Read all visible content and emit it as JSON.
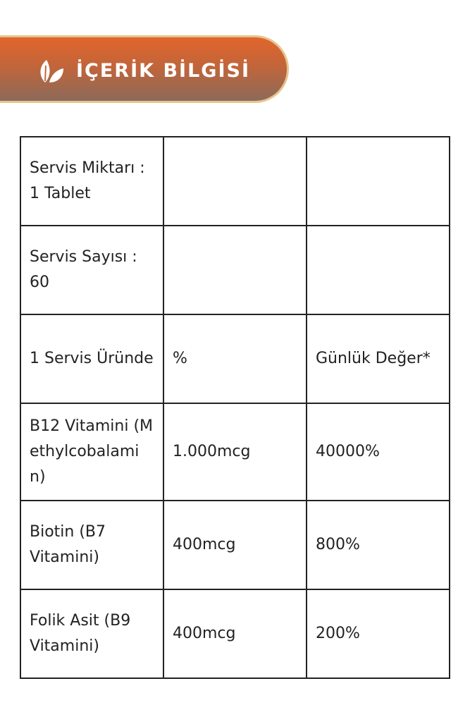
{
  "header": {
    "title": "İÇERİK BİLGİSİ",
    "icon": "leaf-icon",
    "colors": {
      "gradient_top": "#e2652c",
      "gradient_bottom": "#8c6a5a",
      "border": "#e6c58e"
    }
  },
  "table": {
    "rows": [
      [
        "Servis Miktarı : 1 Tablet",
        "",
        ""
      ],
      [
        "Servis Sayısı : 60",
        "",
        ""
      ],
      [
        "1 Servis Üründe",
        "%",
        "Günlük Değer*"
      ],
      [
        "B12 Vitamini (Methylcobalamin)",
        "1.000mcg",
        "40000%"
      ],
      [
        "Biotin (B7 Vitamini)",
        "400mcg",
        "800%"
      ],
      [
        "Folik Asit (B9 Vitamini)",
        "400mcg",
        "200%"
      ]
    ]
  }
}
